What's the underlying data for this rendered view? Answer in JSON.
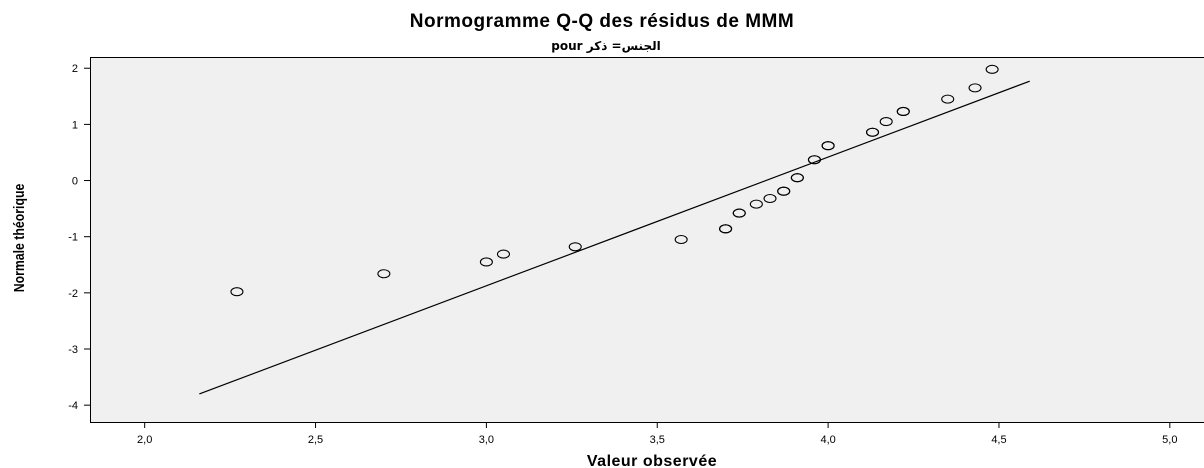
{
  "chart_data": {
    "type": "scatter",
    "title": "Normogramme Q-Q des résidus de MMM",
    "subtitle": "pour الجنس= ذكر",
    "xlabel": "Valeur observée",
    "ylabel": "Normale théorique",
    "xlim": [
      1.84,
      5.1
    ],
    "ylim": [
      -4.3,
      2.2
    ],
    "x_ticks": [
      2.0,
      2.5,
      3.0,
      3.5,
      4.0,
      4.5,
      5.0
    ],
    "x_tick_labels": [
      "2,0",
      "2,5",
      "3,0",
      "3,5",
      "4,0",
      "4,5",
      "5,0"
    ],
    "y_ticks": [
      2,
      1,
      0,
      -1,
      -2,
      -3,
      -4
    ],
    "y_tick_labels": [
      "2",
      "1",
      "0",
      "-1",
      "-2",
      "-3",
      "-4"
    ],
    "grid": false,
    "background_color": "#f0f0f0",
    "marker": "open-circle",
    "points": [
      {
        "x": 2.27,
        "y": -1.98
      },
      {
        "x": 2.7,
        "y": -1.66
      },
      {
        "x": 3.0,
        "y": -1.45
      },
      {
        "x": 3.05,
        "y": -1.31
      },
      {
        "x": 3.26,
        "y": -1.18
      },
      {
        "x": 3.57,
        "y": -1.05
      },
      {
        "x": 3.7,
        "y": -0.86
      },
      {
        "x": 3.7,
        "y": -0.86
      },
      {
        "x": 3.74,
        "y": -0.58
      },
      {
        "x": 3.74,
        "y": -0.58
      },
      {
        "x": 3.79,
        "y": -0.42
      },
      {
        "x": 3.83,
        "y": -0.32
      },
      {
        "x": 3.87,
        "y": -0.19
      },
      {
        "x": 3.87,
        "y": -0.19
      },
      {
        "x": 3.91,
        "y": 0.05
      },
      {
        "x": 3.91,
        "y": 0.05
      },
      {
        "x": 3.96,
        "y": 0.37
      },
      {
        "x": 3.96,
        "y": 0.37
      },
      {
        "x": 4.0,
        "y": 0.62
      },
      {
        "x": 4.0,
        "y": 0.62
      },
      {
        "x": 4.13,
        "y": 0.86
      },
      {
        "x": 4.13,
        "y": 0.86
      },
      {
        "x": 4.17,
        "y": 1.05
      },
      {
        "x": 4.22,
        "y": 1.23
      },
      {
        "x": 4.22,
        "y": 1.23
      },
      {
        "x": 4.35,
        "y": 1.45
      },
      {
        "x": 4.43,
        "y": 1.65
      },
      {
        "x": 4.48,
        "y": 1.98
      }
    ],
    "reference_line": {
      "x": [
        2.16,
        4.59
      ],
      "y": [
        -3.8,
        1.77
      ]
    }
  }
}
